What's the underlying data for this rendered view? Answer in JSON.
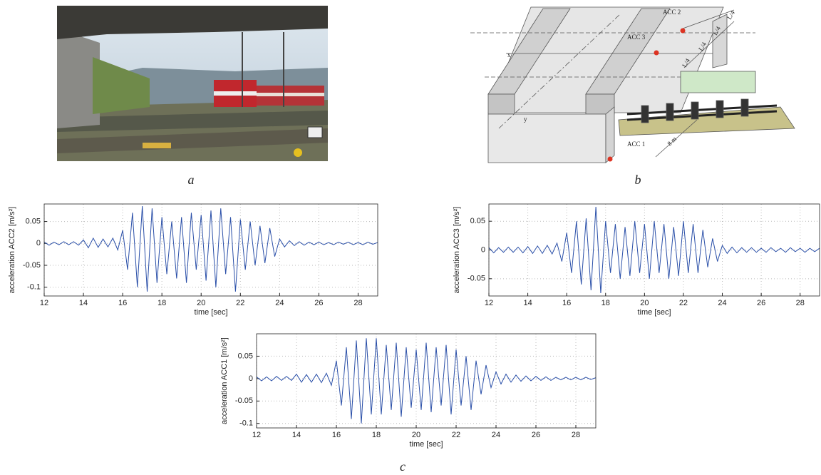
{
  "panel_a": {
    "label": "a"
  },
  "panel_b": {
    "label": "b",
    "sensors": [
      "ACC 2",
      "ACC 3",
      "ACC 1"
    ],
    "axis_x": "x",
    "axis_y": "y",
    "spans": [
      "L/4",
      "L/4",
      "L/4",
      "L/4"
    ],
    "track_length": "8 m"
  },
  "panel_c": {
    "label": "c"
  },
  "chart_data": [
    {
      "type": "line",
      "xlabel": "time [sec]",
      "ylabel": "acceleration ACC2 [m/s²]",
      "color": "#2a4fa8",
      "grid": true,
      "xlim": [
        12,
        29
      ],
      "xticks": [
        12,
        14,
        16,
        18,
        20,
        22,
        24,
        26,
        28
      ],
      "ylim": [
        -0.12,
        0.09
      ],
      "yticks": [
        -0.1,
        -0.05,
        0,
        0.05
      ],
      "x": [
        12,
        12.25,
        12.5,
        12.75,
        13,
        13.25,
        13.5,
        13.75,
        14,
        14.25,
        14.5,
        14.75,
        15,
        15.25,
        15.5,
        15.75,
        16,
        16.25,
        16.5,
        16.75,
        17,
        17.25,
        17.5,
        17.75,
        18,
        18.25,
        18.5,
        18.75,
        19,
        19.25,
        19.5,
        19.75,
        20,
        20.25,
        20.5,
        20.75,
        21,
        21.25,
        21.5,
        21.75,
        22,
        22.25,
        22.5,
        22.75,
        23,
        23.25,
        23.5,
        23.75,
        24,
        24.25,
        24.5,
        24.75,
        25,
        25.25,
        25.5,
        25.75,
        26,
        26.25,
        26.5,
        26.75,
        27,
        27.25,
        27.5,
        27.75,
        28,
        28.25,
        28.5,
        28.75,
        29
      ],
      "values": [
        0.003,
        -0.004,
        0.003,
        -0.003,
        0.004,
        -0.003,
        0.004,
        -0.004,
        0.008,
        -0.01,
        0.012,
        -0.009,
        0.01,
        -0.008,
        0.012,
        -0.015,
        0.03,
        -0.06,
        0.07,
        -0.1,
        0.085,
        -0.11,
        0.08,
        -0.09,
        0.06,
        -0.07,
        0.05,
        -0.08,
        0.06,
        -0.09,
        0.07,
        -0.06,
        0.065,
        -0.085,
        0.075,
        -0.1,
        0.08,
        -0.07,
        0.06,
        -0.11,
        0.055,
        -0.06,
        0.05,
        -0.05,
        0.04,
        -0.045,
        0.035,
        -0.03,
        0.01,
        -0.008,
        0.006,
        -0.005,
        0.004,
        -0.004,
        0.003,
        -0.003,
        0.003,
        -0.003,
        0.002,
        -0.003,
        0.003,
        -0.002,
        0.003,
        -0.003,
        0.002,
        -0.003,
        0.003,
        -0.002,
        0.002
      ]
    },
    {
      "type": "line",
      "xlabel": "time [sec]",
      "ylabel": "acceleration ACC3 [m/s²]",
      "color": "#2a4fa8",
      "grid": true,
      "xlim": [
        12,
        29
      ],
      "xticks": [
        12,
        14,
        16,
        18,
        20,
        22,
        24,
        26,
        28
      ],
      "ylim": [
        -0.08,
        0.08
      ],
      "yticks": [
        -0.05,
        0,
        0.05
      ],
      "x": [
        12,
        12.25,
        12.5,
        12.75,
        13,
        13.25,
        13.5,
        13.75,
        14,
        14.25,
        14.5,
        14.75,
        15,
        15.25,
        15.5,
        15.75,
        16,
        16.25,
        16.5,
        16.75,
        17,
        17.25,
        17.5,
        17.75,
        18,
        18.25,
        18.5,
        18.75,
        19,
        19.25,
        19.5,
        19.75,
        20,
        20.25,
        20.5,
        20.75,
        21,
        21.25,
        21.5,
        21.75,
        22,
        22.25,
        22.5,
        22.75,
        23,
        23.25,
        23.5,
        23.75,
        24,
        24.25,
        24.5,
        24.75,
        25,
        25.25,
        25.5,
        25.75,
        26,
        26.25,
        26.5,
        26.75,
        27,
        27.25,
        27.5,
        27.75,
        28,
        28.25,
        28.5,
        28.75,
        29
      ],
      "values": [
        0.004,
        -0.005,
        0.004,
        -0.004,
        0.005,
        -0.004,
        0.005,
        -0.005,
        0.006,
        -0.006,
        0.007,
        -0.006,
        0.008,
        -0.007,
        0.012,
        -0.02,
        0.03,
        -0.04,
        0.05,
        -0.06,
        0.055,
        -0.07,
        0.075,
        -0.075,
        0.05,
        -0.04,
        0.045,
        -0.05,
        0.04,
        -0.045,
        0.05,
        -0.04,
        0.045,
        -0.05,
        0.05,
        -0.04,
        0.045,
        -0.05,
        0.04,
        -0.045,
        0.05,
        -0.04,
        0.045,
        -0.04,
        0.035,
        -0.03,
        0.02,
        -0.02,
        0.008,
        -0.006,
        0.005,
        -0.005,
        0.004,
        -0.004,
        0.004,
        -0.004,
        0.003,
        -0.004,
        0.004,
        -0.003,
        0.003,
        -0.004,
        0.004,
        -0.003,
        0.003,
        -0.004,
        0.003,
        -0.003,
        0.003
      ]
    },
    {
      "type": "line",
      "xlabel": "time [sec]",
      "ylabel": "acceleration ACC1 [m/s²]",
      "color": "#2a4fa8",
      "grid": true,
      "xlim": [
        12,
        29
      ],
      "xticks": [
        12,
        14,
        16,
        18,
        20,
        22,
        24,
        26,
        28
      ],
      "ylim": [
        -0.11,
        0.1
      ],
      "yticks": [
        -0.1,
        -0.05,
        0,
        0.05
      ],
      "x": [
        12,
        12.25,
        12.5,
        12.75,
        13,
        13.25,
        13.5,
        13.75,
        14,
        14.25,
        14.5,
        14.75,
        15,
        15.25,
        15.5,
        15.75,
        16,
        16.25,
        16.5,
        16.75,
        17,
        17.25,
        17.5,
        17.75,
        18,
        18.25,
        18.5,
        18.75,
        19,
        19.25,
        19.5,
        19.75,
        20,
        20.25,
        20.5,
        20.75,
        21,
        21.25,
        21.5,
        21.75,
        22,
        22.25,
        22.5,
        22.75,
        23,
        23.25,
        23.5,
        23.75,
        24,
        24.25,
        24.5,
        24.75,
        25,
        25.25,
        25.5,
        25.75,
        26,
        26.25,
        26.5,
        26.75,
        27,
        27.25,
        27.5,
        27.75,
        28,
        28.25,
        28.5,
        28.75,
        29
      ],
      "values": [
        0.004,
        -0.005,
        0.004,
        -0.005,
        0.005,
        -0.004,
        0.005,
        -0.004,
        0.01,
        -0.008,
        0.009,
        -0.008,
        0.01,
        -0.009,
        0.012,
        -0.015,
        0.04,
        -0.06,
        0.07,
        -0.09,
        0.085,
        -0.1,
        0.09,
        -0.08,
        0.09,
        -0.08,
        0.075,
        -0.07,
        0.08,
        -0.085,
        0.07,
        -0.065,
        0.065,
        -0.07,
        0.08,
        -0.075,
        0.07,
        -0.06,
        0.075,
        -0.08,
        0.065,
        -0.06,
        0.05,
        -0.07,
        0.04,
        -0.035,
        0.03,
        -0.02,
        0.015,
        -0.012,
        0.01,
        -0.008,
        0.008,
        -0.006,
        0.006,
        -0.005,
        0.005,
        -0.004,
        0.004,
        -0.004,
        0.003,
        -0.003,
        0.003,
        -0.003,
        0.003,
        -0.003,
        0.003,
        -0.002,
        0.002
      ]
    }
  ]
}
